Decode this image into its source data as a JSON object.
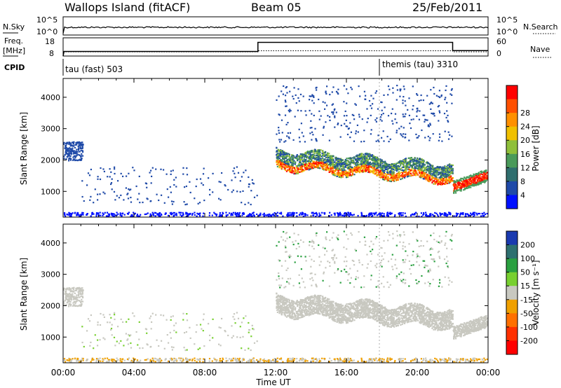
{
  "header": {
    "station": "Wallops Island (fitACF)",
    "beam": "Beam 05",
    "date": "25/Feb/2011"
  },
  "panels": {
    "nsky": {
      "left_label": "N.Sky",
      "right_label": "N.Search",
      "left_top": "10^5",
      "left_bottom": "10^0",
      "right_top": "10^5",
      "right_bottom": "10^0"
    },
    "freq": {
      "left_label_line1": "Freq.",
      "left_label_line2": "[MHz]",
      "left_top": "18",
      "left_bottom": "8",
      "right_label": "Nave",
      "right_top": "60",
      "right_bottom": "0"
    },
    "cpid": {
      "label": "CPID",
      "program1": "tau (fast) 503",
      "program2": "themis (tau) 3310"
    }
  },
  "chart_data": [
    {
      "type": "heatmap",
      "name": "power",
      "ylabel": "Slant Range [km]",
      "xlabel": "Time UT",
      "xlim": [
        0,
        24
      ],
      "ylim": [
        180,
        4600
      ],
      "y_ticks": [
        "1000",
        "2000",
        "3000",
        "4000"
      ],
      "x_tick_labels": [
        "00:00",
        "04:00",
        "08:00",
        "12:00",
        "16:00",
        "20:00",
        "00:00"
      ],
      "colorbar": {
        "label": "Power [dB]",
        "ticks": [
          "4",
          "8",
          "12",
          "16",
          "20",
          "24",
          "28"
        ],
        "colors": [
          "#0010ff",
          "#1f4aa8",
          "#2f6e6e",
          "#4a9a5a",
          "#8fbf3a",
          "#f0c000",
          "#ff9000",
          "#ff5000",
          "#ff0000"
        ]
      }
    },
    {
      "type": "heatmap",
      "name": "velocity",
      "ylabel": "Slant Range [km]",
      "xlabel": "Time UT",
      "xlim": [
        0,
        24
      ],
      "ylim": [
        180,
        4600
      ],
      "y_ticks": [
        "1000",
        "2000",
        "3000",
        "4000"
      ],
      "x_tick_labels": [
        "00:00",
        "04:00",
        "08:00",
        "12:00",
        "16:00",
        "20:00",
        "00:00"
      ],
      "colorbar": {
        "label": "Velocity [m s⁻¹]",
        "ticks": [
          "200",
          "100",
          "50",
          "15",
          "-15",
          "-50",
          "-100",
          "-200"
        ],
        "colors": [
          "#1a3ab0",
          "#2e7070",
          "#2aa040",
          "#78d030",
          "#c8c8c0",
          "#f0a000",
          "#ff7000",
          "#ff3000",
          "#ff0000"
        ]
      }
    }
  ]
}
